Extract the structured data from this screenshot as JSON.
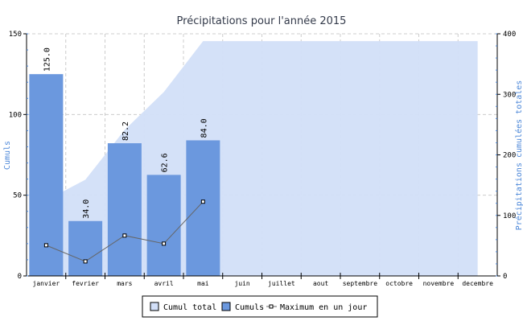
{
  "chart_data": {
    "type": "bar",
    "title": "Précipitations pour l'année 2015",
    "categories": [
      "janvier",
      "fevrier",
      "mars",
      "avril",
      "mai",
      "juin",
      "juillet",
      "aout",
      "septembre",
      "octobre",
      "novembre",
      "decembre"
    ],
    "ylabel": "Cumuls",
    "y2label": "Précipitations cumulées totales",
    "ylim": [
      0,
      150
    ],
    "y2lim": [
      0,
      400
    ],
    "yticks": [
      "0",
      "50",
      "100",
      "150"
    ],
    "y2ticks": [
      "0",
      "100",
      "200",
      "300",
      "400"
    ],
    "grid": true,
    "legend_position": "bottom",
    "series": [
      {
        "name": "Cumul total",
        "type": "area",
        "axis": "right",
        "color": "#d2dff8",
        "values": [
          125.0,
          159.0,
          241.2,
          303.8,
          387.8,
          387.8,
          387.8,
          387.8,
          387.8,
          387.8,
          387.8,
          387.8
        ]
      },
      {
        "name": "Cumuls",
        "type": "bar",
        "axis": "left",
        "color": "#6b98de",
        "values": [
          125.0,
          34.0,
          82.2,
          62.6,
          84.0,
          null,
          null,
          null,
          null,
          null,
          null,
          null
        ],
        "labels": [
          "125.0",
          "34.0",
          "82.2",
          "62.6",
          "84.0"
        ]
      },
      {
        "name": "Maximum en un jour",
        "type": "line",
        "axis": "left",
        "color": "#666666",
        "values": [
          19,
          9,
          25,
          20,
          46,
          null,
          null,
          null,
          null,
          null,
          null,
          null
        ]
      }
    ]
  }
}
